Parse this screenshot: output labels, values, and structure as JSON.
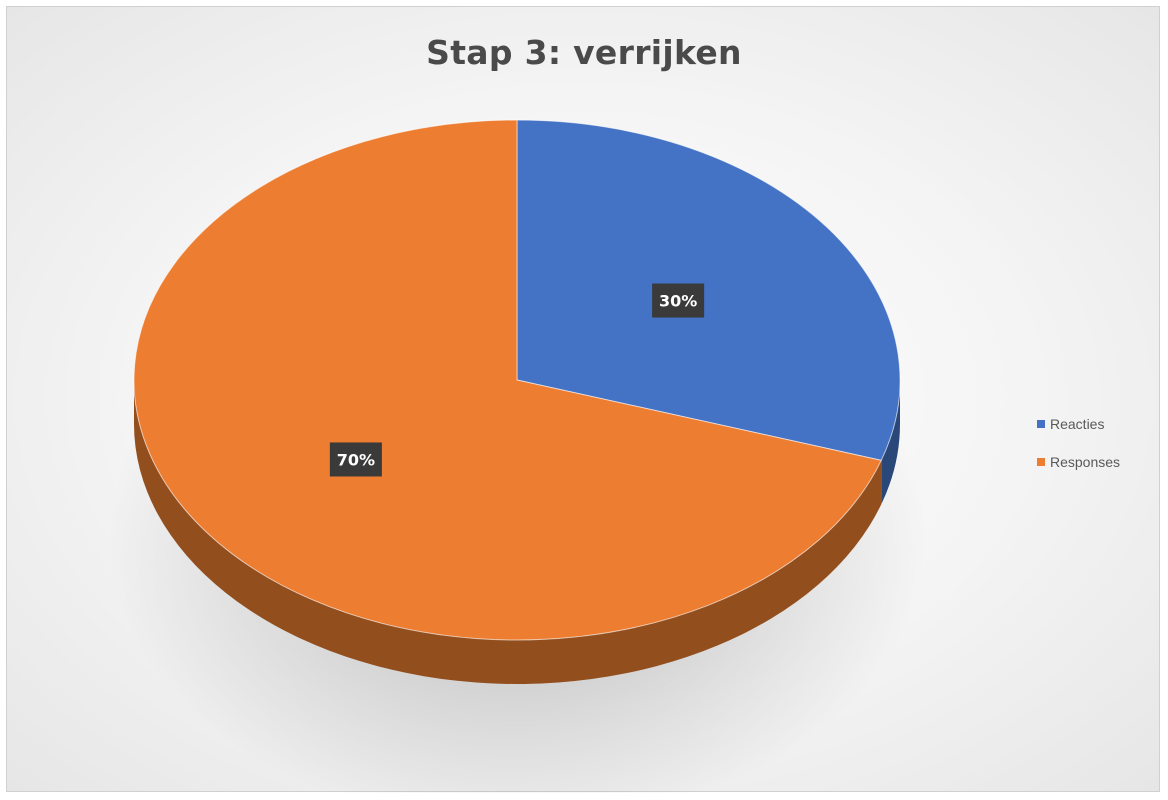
{
  "chart_data": {
    "type": "pie",
    "title": "Stap 3: verrijken",
    "categories": [
      "Reacties",
      "Responses"
    ],
    "values": [
      30,
      70
    ],
    "data_labels": [
      "30%",
      "70%"
    ],
    "colors": [
      "#4472C4",
      "#ED7D31"
    ],
    "style": "3d",
    "legend": {
      "position": "right",
      "entries": [
        "Reacties",
        "Responses"
      ]
    }
  }
}
